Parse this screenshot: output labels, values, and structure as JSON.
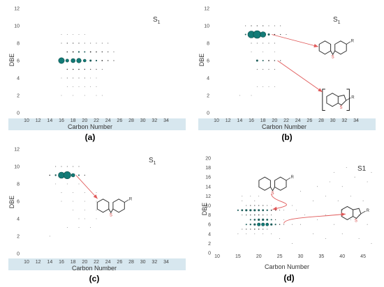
{
  "figure": {
    "background": "#ffffff",
    "bubble_color": "#137b77",
    "bubble_edge": "#0c4c49",
    "dot_color": "#2a2a2a",
    "arrow_color": "#e05858",
    "bond_color": "#333333",
    "sulfur_color": "#d33a3a",
    "axis_band_color": "#d7e7ef"
  },
  "chart_data": [
    {
      "type": "scatter",
      "panel_label": "(a)",
      "series_label": "S",
      "series_subscript": "1",
      "xlabel": "Carbon Number",
      "ylabel": "DBE",
      "xlim": [
        10,
        34
      ],
      "ylim": [
        0,
        12
      ],
      "x_ticks": [
        10,
        12,
        14,
        16,
        18,
        20,
        22,
        24,
        26,
        28,
        30,
        32,
        34
      ],
      "y_ticks": [
        0,
        2,
        4,
        6,
        8,
        10,
        12
      ],
      "points": [
        [
          16,
          6,
          4.2
        ],
        [
          17,
          6,
          2.2
        ],
        [
          18,
          6,
          3
        ],
        [
          19,
          6,
          3.3
        ],
        [
          20,
          6,
          2
        ],
        [
          21,
          6,
          1.5
        ],
        [
          22,
          6,
          1.1
        ],
        [
          23,
          6,
          0.9
        ],
        [
          24,
          6,
          0.7
        ],
        [
          25,
          6,
          0.6
        ],
        [
          17,
          7,
          0.8
        ],
        [
          18,
          7,
          0.9
        ],
        [
          19,
          7,
          1.1
        ],
        [
          20,
          7,
          1
        ],
        [
          21,
          7,
          0.9
        ],
        [
          22,
          7,
          0.8
        ],
        [
          23,
          7,
          0.7
        ],
        [
          24,
          7,
          0.6
        ],
        [
          25,
          7,
          0.5
        ],
        [
          17,
          5,
          0.7
        ],
        [
          18,
          5,
          0.8
        ],
        [
          19,
          5,
          0.8
        ],
        [
          20,
          5,
          0.7
        ],
        [
          21,
          5,
          0.6
        ],
        [
          22,
          5,
          0.6
        ],
        [
          23,
          5,
          0.5
        ],
        [
          16,
          8,
          0.5
        ],
        [
          17,
          8,
          0.6
        ],
        [
          18,
          8,
          0.6
        ],
        [
          19,
          8,
          0.6
        ],
        [
          20,
          8,
          0.5
        ],
        [
          21,
          8,
          0.5
        ],
        [
          22,
          8,
          0.5
        ],
        [
          23,
          8,
          0.5
        ],
        [
          24,
          8,
          0.5
        ],
        [
          16,
          4,
          0.4
        ],
        [
          17,
          4,
          0.5
        ],
        [
          18,
          4,
          0.5
        ],
        [
          19,
          4,
          0.5
        ],
        [
          20,
          4,
          0.5
        ],
        [
          21,
          4,
          0.4
        ],
        [
          22,
          4,
          0.4
        ],
        [
          16,
          9,
          0.4
        ],
        [
          17,
          9,
          0.4
        ],
        [
          18,
          9,
          0.4
        ],
        [
          19,
          9,
          0.4
        ],
        [
          20,
          9,
          0.4
        ],
        [
          17,
          3,
          0.4
        ],
        [
          18,
          3,
          0.4
        ],
        [
          19,
          3,
          0.4
        ],
        [
          20,
          3,
          0.4
        ],
        [
          21,
          3,
          0.4
        ],
        [
          22,
          3,
          0.4
        ],
        [
          16,
          2,
          0.4
        ],
        [
          18,
          2,
          0.4
        ],
        [
          20,
          2,
          0.4
        ],
        [
          22,
          2,
          0.4
        ],
        [
          23,
          2,
          0.4
        ]
      ],
      "structures": [],
      "arrows": []
    },
    {
      "type": "scatter",
      "panel_label": "(b)",
      "series_label": "S",
      "series_subscript": "1",
      "xlabel": "Carbon Number",
      "ylabel": "DBE",
      "xlim": [
        10,
        34
      ],
      "ylim": [
        0,
        12
      ],
      "x_ticks": [
        10,
        12,
        14,
        16,
        18,
        20,
        22,
        24,
        26,
        28,
        30,
        32,
        34
      ],
      "y_ticks": [
        0,
        2,
        4,
        6,
        8,
        10,
        12
      ],
      "points": [
        [
          15,
          9,
          1
        ],
        [
          16,
          9,
          5
        ],
        [
          17,
          9,
          5.5
        ],
        [
          18,
          9,
          4
        ],
        [
          19,
          9,
          1.5
        ],
        [
          20,
          9,
          0.8
        ],
        [
          21,
          9,
          0.6
        ],
        [
          22,
          9,
          0.5
        ],
        [
          15,
          10,
          0.5
        ],
        [
          16,
          10,
          0.6
        ],
        [
          17,
          10,
          0.6
        ],
        [
          18,
          10,
          0.6
        ],
        [
          19,
          10,
          0.5
        ],
        [
          20,
          10,
          0.5
        ],
        [
          21,
          10,
          0.5
        ],
        [
          16,
          8,
          0.5
        ],
        [
          17,
          8,
          0.5
        ],
        [
          18,
          8,
          0.5
        ],
        [
          19,
          8,
          0.5
        ],
        [
          20,
          8,
          0.5
        ],
        [
          17,
          6,
          1.5
        ],
        [
          18,
          6,
          1
        ],
        [
          19,
          6,
          0.9
        ],
        [
          20,
          6,
          0.7
        ],
        [
          21,
          6,
          0.6
        ],
        [
          16,
          7,
          0.4
        ],
        [
          18,
          7,
          0.4
        ],
        [
          20,
          7,
          0.4
        ],
        [
          17,
          5,
          0.5
        ],
        [
          18,
          5,
          0.5
        ],
        [
          19,
          5,
          0.5
        ],
        [
          20,
          5,
          0.5
        ],
        [
          17,
          3,
          0.4
        ],
        [
          18,
          3,
          0.4
        ],
        [
          19,
          3,
          0.4
        ],
        [
          20,
          3,
          0.4
        ],
        [
          14,
          2,
          0.4
        ],
        [
          16,
          2,
          0.4
        ]
      ],
      "structures": [
        {
          "kind": "dibenzothiophene",
          "cx": 30,
          "cy": 7.5,
          "r": 1,
          "label": "S",
          "substituent": "R",
          "bracket": false
        },
        {
          "kind": "benzothiophene",
          "cx": 30.5,
          "cy": 1.5,
          "r": 1,
          "label": "S",
          "substituent": "R",
          "bracket": true
        }
      ],
      "arrows": [
        {
          "from": [
            19.5,
            9
          ],
          "to": [
            27.5,
            7.6
          ]
        },
        {
          "from": [
            20.5,
            6
          ],
          "to": [
            28.2,
            2.4
          ]
        }
      ]
    },
    {
      "type": "scatter",
      "panel_label": "(c)",
      "series_label": "S",
      "series_subscript": "1",
      "xlabel": "Carbon Number",
      "ylabel": "DBE",
      "xlim": [
        10,
        34
      ],
      "ylim": [
        0,
        12
      ],
      "x_ticks": [
        10,
        12,
        14,
        16,
        18,
        20,
        22,
        24,
        26,
        28,
        30,
        32,
        34
      ],
      "y_ticks": [
        0,
        2,
        4,
        6,
        8,
        10,
        12
      ],
      "points": [
        [
          14,
          9,
          0.8
        ],
        [
          15,
          9,
          1.2
        ],
        [
          16,
          9,
          4.5
        ],
        [
          17,
          9,
          5.2
        ],
        [
          18,
          9,
          2.5
        ],
        [
          19,
          9,
          1
        ],
        [
          20,
          9,
          0.6
        ],
        [
          15,
          10,
          0.5
        ],
        [
          16,
          10,
          0.5
        ],
        [
          17,
          10,
          0.5
        ],
        [
          18,
          10,
          0.5
        ],
        [
          19,
          10,
          0.5
        ],
        [
          15,
          8,
          0.4
        ],
        [
          17,
          8,
          0.4
        ],
        [
          19,
          8,
          0.4
        ],
        [
          16,
          7,
          0.4
        ],
        [
          18,
          7,
          0.4
        ],
        [
          20,
          7,
          0.4
        ],
        [
          22,
          7,
          0.4
        ],
        [
          16,
          6,
          0.4
        ],
        [
          18,
          6,
          0.4
        ],
        [
          20,
          6,
          0.4
        ],
        [
          22,
          6,
          0.4
        ],
        [
          18,
          5,
          0.4
        ],
        [
          20,
          5,
          0.4
        ],
        [
          22,
          5,
          0.4
        ],
        [
          19,
          4,
          0.4
        ],
        [
          20,
          4,
          0.4
        ],
        [
          22,
          4,
          0.4
        ],
        [
          17,
          3,
          0.4
        ],
        [
          19,
          3,
          0.4
        ],
        [
          21,
          3,
          0.4
        ],
        [
          14,
          2,
          0.4
        ]
      ],
      "structures": [
        {
          "kind": "dibenzothiophene",
          "cx": 24.5,
          "cy": 5.5,
          "r": 1,
          "label": "S",
          "substituent": "R",
          "bracket": false
        }
      ],
      "arrows": [
        {
          "from": [
            18.5,
            9
          ],
          "to": [
            22.2,
            6.3
          ]
        }
      ]
    },
    {
      "type": "scatter",
      "panel_label": "(d)",
      "series_label": "S1",
      "series_subscript": "",
      "xlabel": "Carbon Number",
      "ylabel": "DBE",
      "xlim": [
        10,
        48
      ],
      "ylim": [
        0,
        20
      ],
      "x_ticks": [
        10,
        15,
        20,
        25,
        30,
        35,
        40,
        45
      ],
      "y_ticks": [
        0,
        2,
        4,
        6,
        8,
        10,
        12,
        14,
        16,
        18,
        20
      ],
      "points": [
        [
          15,
          9,
          1.1
        ],
        [
          16,
          9,
          1.4
        ],
        [
          17,
          9,
          1.6
        ],
        [
          18,
          9,
          1.6
        ],
        [
          19,
          9,
          1.6
        ],
        [
          20,
          9,
          1.5
        ],
        [
          21,
          9,
          1.4
        ],
        [
          22,
          9,
          1.2
        ],
        [
          23,
          9,
          0.9
        ],
        [
          24,
          9,
          0.7
        ],
        [
          25,
          9,
          0.5
        ],
        [
          26,
          9,
          0.4
        ],
        [
          17,
          6,
          1
        ],
        [
          18,
          6,
          1.2
        ],
        [
          19,
          6,
          1.6
        ],
        [
          20,
          6,
          2.2
        ],
        [
          21,
          6,
          2.2
        ],
        [
          22,
          6,
          2
        ],
        [
          23,
          6,
          1.6
        ],
        [
          24,
          6,
          1.1
        ],
        [
          25,
          6,
          0.7
        ],
        [
          26,
          6,
          0.5
        ],
        [
          18,
          7,
          1
        ],
        [
          19,
          7,
          1.3
        ],
        [
          20,
          7,
          1.6
        ],
        [
          21,
          7,
          1.6
        ],
        [
          22,
          7,
          1.4
        ],
        [
          23,
          7,
          1
        ],
        [
          24,
          7,
          0.6
        ],
        [
          17,
          10,
          0.5
        ],
        [
          18,
          10,
          0.6
        ],
        [
          19,
          10,
          0.6
        ],
        [
          20,
          10,
          0.6
        ],
        [
          21,
          10,
          0.6
        ],
        [
          22,
          10,
          0.5
        ],
        [
          23,
          10,
          0.4
        ],
        [
          16,
          8,
          0.5
        ],
        [
          17,
          8,
          0.6
        ],
        [
          18,
          8,
          0.6
        ],
        [
          19,
          8,
          0.7
        ],
        [
          20,
          8,
          0.7
        ],
        [
          21,
          8,
          0.6
        ],
        [
          22,
          8,
          0.5
        ],
        [
          23,
          8,
          0.5
        ],
        [
          16,
          5,
          0.5
        ],
        [
          17,
          5,
          0.6
        ],
        [
          18,
          5,
          0.6
        ],
        [
          19,
          5,
          0.7
        ],
        [
          20,
          5,
          0.7
        ],
        [
          21,
          5,
          0.6
        ],
        [
          22,
          5,
          0.5
        ],
        [
          15,
          4,
          0.4
        ],
        [
          17,
          4,
          0.4
        ],
        [
          19,
          4,
          0.4
        ],
        [
          21,
          4,
          0.4
        ],
        [
          23,
          4,
          0.4
        ],
        [
          16,
          12,
          0.4
        ],
        [
          18,
          12,
          0.4
        ],
        [
          20,
          12,
          0.4
        ],
        [
          16,
          11,
          0.4
        ],
        [
          19,
          11,
          0.4
        ],
        [
          26,
          7,
          0.4
        ],
        [
          28,
          6,
          0.4
        ],
        [
          30,
          6,
          0.4
        ],
        [
          29,
          9,
          0.4
        ],
        [
          31,
          8,
          0.4
        ],
        [
          28,
          10,
          0.4
        ],
        [
          34,
          7,
          0.4
        ],
        [
          36,
          8,
          0.4
        ],
        [
          38,
          6,
          0.4
        ],
        [
          40,
          9,
          0.4
        ],
        [
          42,
          7,
          0.4
        ],
        [
          44,
          8,
          0.4
        ],
        [
          46,
          6,
          0.4
        ],
        [
          33,
          11,
          0.4
        ],
        [
          36,
          12,
          0.4
        ],
        [
          39,
          11,
          0.4
        ],
        [
          42,
          12,
          0.4
        ],
        [
          45,
          11,
          0.4
        ],
        [
          34,
          14,
          0.4
        ],
        [
          37,
          15,
          0.4
        ],
        [
          40,
          14,
          0.4
        ],
        [
          43,
          16,
          0.4
        ],
        [
          46,
          15,
          0.4
        ],
        [
          38,
          17,
          0.4
        ],
        [
          41,
          18,
          0.4
        ],
        [
          44,
          18,
          0.4
        ],
        [
          47,
          17,
          0.4
        ],
        [
          33,
          4,
          0.4
        ],
        [
          36,
          3,
          0.4
        ],
        [
          40,
          4,
          0.4
        ],
        [
          44,
          3,
          0.4
        ],
        [
          47,
          2,
          0.4
        ],
        [
          30,
          13,
          0.4
        ],
        [
          25,
          3,
          0.4
        ],
        [
          28,
          2,
          0.4
        ]
      ],
      "structures": [
        {
          "kind": "dibenzothiophene",
          "cx": 23.3,
          "cy": 14.6,
          "r": 1,
          "label": "S",
          "substituent": "R",
          "bracket": false
        },
        {
          "kind": "benzothiophene",
          "cx": 42,
          "cy": 8.4,
          "r": 1,
          "label": "S",
          "substituent": "R",
          "bracket": false
        }
      ],
      "arrows": [
        {
          "from": [
            23,
            12.5
          ],
          "to": [
            23.3,
            9.2
          ],
          "via": [
            31,
            10.5
          ]
        },
        {
          "from": [
            26,
            6.2
          ],
          "to": [
            40.8,
            8.2
          ],
          "via": [
            33,
            7.5
          ]
        }
      ]
    }
  ]
}
